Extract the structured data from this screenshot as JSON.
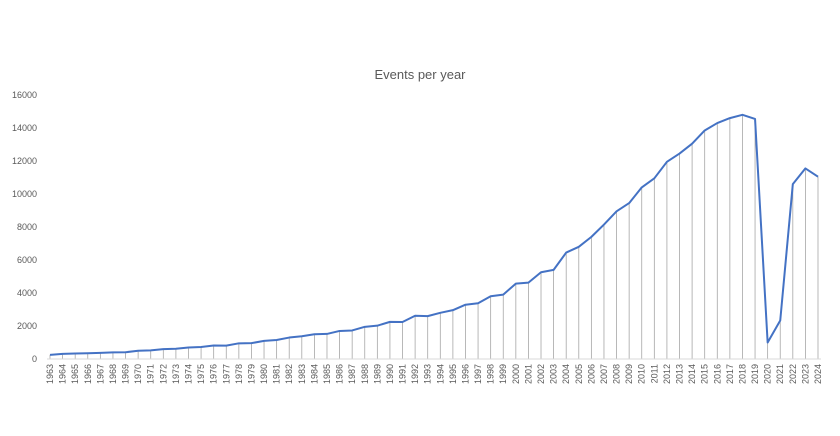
{
  "chart_data": {
    "type": "line",
    "title": "Events per year",
    "xlabel": "",
    "ylabel": "",
    "ylim": [
      0,
      16000
    ],
    "y_ticks": [
      0,
      2000,
      4000,
      6000,
      8000,
      10000,
      12000,
      14000,
      16000
    ],
    "grid": false,
    "drop_lines": true,
    "legend": "none",
    "colors": {
      "line": "#4472C4",
      "drop_line": "#A6A6A6",
      "axis": "#D9D9D9",
      "text": "#595959"
    },
    "categories": [
      "1963",
      "1964",
      "1965",
      "1966",
      "1967",
      "1968",
      "1969",
      "1970",
      "1971",
      "1972",
      "1973",
      "1974",
      "1975",
      "1976",
      "1977",
      "1978",
      "1979",
      "1980",
      "1981",
      "1982",
      "1983",
      "1984",
      "1985",
      "1986",
      "1987",
      "1988",
      "1989",
      "1990",
      "1991",
      "1992",
      "1993",
      "1994",
      "1995",
      "1996",
      "1997",
      "1998",
      "1999",
      "2000",
      "2001",
      "2002",
      "2003",
      "2004",
      "2005",
      "2006",
      "2007",
      "2008",
      "2009",
      "2010",
      "2011",
      "2012",
      "2013",
      "2014",
      "2015",
      "2016",
      "2017",
      "2018",
      "2019",
      "2020",
      "2021",
      "2022",
      "2023",
      "2024"
    ],
    "series": [
      {
        "values": [
          250,
          310,
          330,
          350,
          370,
          400,
          410,
          500,
          520,
          600,
          620,
          700,
          730,
          820,
          810,
          950,
          960,
          1100,
          1150,
          1300,
          1380,
          1500,
          1520,
          1700,
          1730,
          1950,
          2020,
          2250,
          2240,
          2620,
          2600,
          2800,
          2960,
          3290,
          3380,
          3800,
          3900,
          4570,
          4630,
          5260,
          5400,
          6450,
          6800,
          7400,
          8150,
          8950,
          9450,
          10400,
          10950,
          11950,
          12450,
          13050,
          13850,
          14300,
          14600,
          14800,
          14550,
          1000,
          2330,
          10600,
          11550,
          11050
        ]
      }
    ]
  }
}
